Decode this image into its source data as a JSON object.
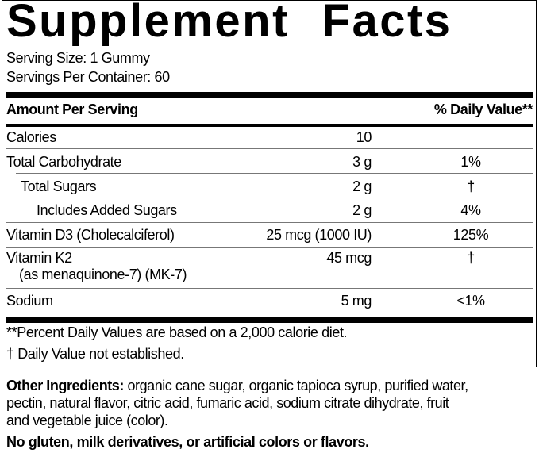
{
  "title": "Supplement Facts",
  "serving_size": "Serving Size: 1 Gummy",
  "servings_per_container": "Servings Per Container: 60",
  "header": {
    "amount": "Amount Per Serving",
    "dv": "% Daily Value**"
  },
  "rows": [
    {
      "name": "Calories",
      "amount": "10",
      "dv": ""
    },
    {
      "name": "Total Carbohydrate",
      "amount": "3 g",
      "dv": "1%"
    },
    {
      "name": "Total Sugars",
      "amount": "2 g",
      "dv": "†"
    },
    {
      "name": "Includes Added Sugars",
      "amount": "2 g",
      "dv": "4%"
    },
    {
      "name": "Vitamin D3 (Cholecalciferol)",
      "amount": "25 mcg (1000 IU)",
      "dv": "125%"
    },
    {
      "name": "Vitamin K2",
      "subname": "(as menaquinone-7) (MK-7)",
      "amount": "45 mcg",
      "dv": "†"
    },
    {
      "name": "Sodium",
      "amount": "5 mg",
      "dv": "<1%"
    }
  ],
  "footnotes": [
    "**Percent Daily Values are based on a 2,000 calorie diet.",
    "† Daily Value not established."
  ],
  "other_ingredients": {
    "label": "Other Ingredients:",
    "lines": [
      " organic cane sugar, organic tapioca syrup, purified water,",
      "pectin, natural flavor, citric acid, fumaric acid, sodium citrate dihydrate, fruit",
      "and vegetable juice (color)."
    ]
  },
  "allergen_statement": "No gluten, milk derivatives, or artificial colors or flavors."
}
